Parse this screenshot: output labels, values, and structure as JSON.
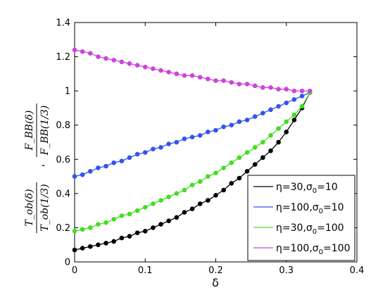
{
  "chart_data": {
    "type": "line",
    "title": "",
    "xlabel": "δ",
    "ylabel": {
      "part1": {
        "numerator": "T_ob(δ)",
        "denominator": "T_ob(1/3)"
      },
      "separator": ",",
      "part2": {
        "numerator": "F_BB(δ)",
        "denominator": "F_BB(1/3)"
      }
    },
    "xlim": [
      0,
      0.4
    ],
    "ylim": [
      0,
      1.4
    ],
    "xticks": [
      0,
      0.1,
      0.2,
      0.3,
      0.4
    ],
    "xtick_labels": [
      "0",
      "0.1",
      "0.2",
      "0.3",
      "0.4"
    ],
    "yticks": [
      0,
      0.2,
      0.4,
      0.6,
      0.8,
      1.0,
      1.2,
      1.4
    ],
    "ytick_labels": [
      "0",
      "0.2",
      "0.4",
      "0.6",
      "0.8",
      "1",
      "1.2",
      "1.4"
    ],
    "grid": false,
    "legend_position": "lower-right",
    "x": [
      0,
      0.01111,
      0.02222,
      0.03333,
      0.04444,
      0.05556,
      0.06667,
      0.07778,
      0.08889,
      0.1,
      0.11111,
      0.12222,
      0.13333,
      0.14444,
      0.15556,
      0.16667,
      0.17778,
      0.18889,
      0.2,
      0.21111,
      0.22222,
      0.23333,
      0.24444,
      0.25556,
      0.26667,
      0.27778,
      0.28889,
      0.3,
      0.31111,
      0.32222,
      0.33333
    ],
    "series": [
      {
        "name": "η=30,σ_0=10",
        "color": "#000000",
        "values": [
          0.07,
          0.08,
          0.09,
          0.1,
          0.11,
          0.12,
          0.14,
          0.15,
          0.17,
          0.18,
          0.2,
          0.22,
          0.24,
          0.26,
          0.29,
          0.31,
          0.34,
          0.36,
          0.39,
          0.42,
          0.46,
          0.49,
          0.53,
          0.57,
          0.61,
          0.65,
          0.7,
          0.76,
          0.83,
          0.9,
          0.99
        ]
      },
      {
        "name": "η=100,σ_0=10",
        "color": "#3355ee",
        "values": [
          0.5,
          0.51,
          0.53,
          0.55,
          0.56,
          0.58,
          0.59,
          0.61,
          0.63,
          0.64,
          0.66,
          0.67,
          0.69,
          0.7,
          0.72,
          0.73,
          0.74,
          0.76,
          0.77,
          0.79,
          0.8,
          0.82,
          0.83,
          0.85,
          0.87,
          0.89,
          0.91,
          0.93,
          0.95,
          0.97,
          0.99
        ]
      },
      {
        "name": "η=30,σ_0=100",
        "color": "#44dd22",
        "values": [
          0.18,
          0.19,
          0.2,
          0.22,
          0.23,
          0.25,
          0.27,
          0.28,
          0.3,
          0.32,
          0.34,
          0.36,
          0.38,
          0.4,
          0.42,
          0.45,
          0.47,
          0.5,
          0.52,
          0.55,
          0.58,
          0.61,
          0.64,
          0.67,
          0.7,
          0.74,
          0.78,
          0.82,
          0.86,
          0.91,
          0.99
        ]
      },
      {
        "name": "η=100,σ_0=100",
        "color": "#cc44dd",
        "values": [
          1.24,
          1.23,
          1.22,
          1.2,
          1.19,
          1.18,
          1.17,
          1.16,
          1.15,
          1.14,
          1.13,
          1.12,
          1.11,
          1.1,
          1.09,
          1.09,
          1.08,
          1.07,
          1.06,
          1.06,
          1.05,
          1.04,
          1.04,
          1.03,
          1.02,
          1.02,
          1.01,
          1.01,
          1.0,
          1.0,
          1.0
        ]
      }
    ],
    "legend_labels": [
      {
        "base": "η=30,σ",
        "sub": "0",
        "tail": "=10"
      },
      {
        "base": "η=100,σ",
        "sub": "0",
        "tail": "=10"
      },
      {
        "base": "η=30,σ",
        "sub": "0",
        "tail": "=100"
      },
      {
        "base": "η=100,σ",
        "sub": "0",
        "tail": "=100"
      }
    ]
  }
}
